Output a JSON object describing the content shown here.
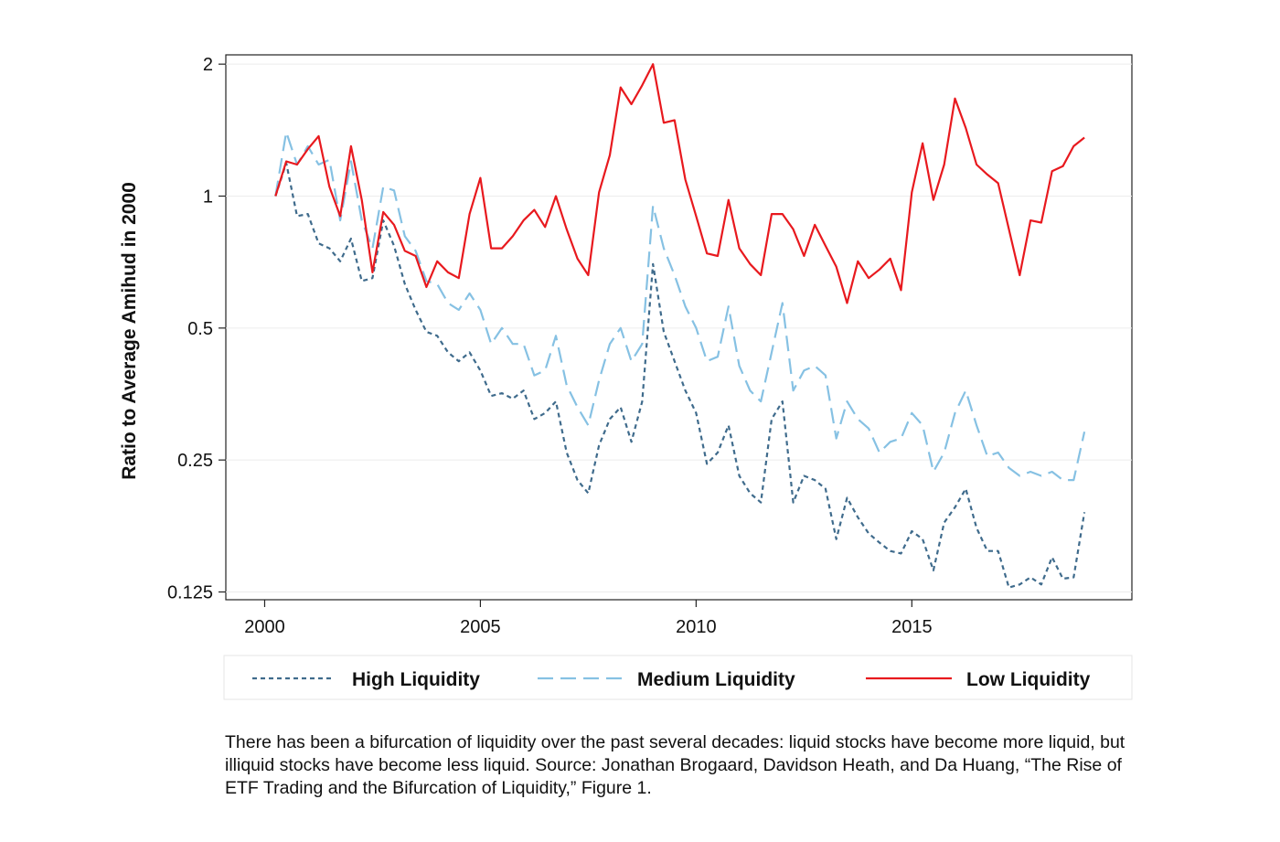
{
  "chart_data": {
    "type": "line",
    "ylabel": "Ratio to Average Amihud in 2000",
    "xlabel": "",
    "y_scale": "log2",
    "ylim": [
      0.12,
      2.1
    ],
    "xlim": [
      1999.1,
      2020.1
    ],
    "y_ticks": [
      2,
      1,
      0.5,
      0.25,
      0.125
    ],
    "y_tick_labels": [
      "2",
      "1",
      "0.5",
      "0.25",
      "0.125"
    ],
    "x_ticks": [
      2000,
      2005,
      2010,
      2015
    ],
    "x_tick_labels": [
      "2000",
      "2005",
      "2010",
      "2015"
    ],
    "grid": "horizontal",
    "legend_position": "bottom",
    "x": [
      2000.25,
      2000.5,
      2000.75,
      2001,
      2001.25,
      2001.5,
      2001.75,
      2002,
      2002.25,
      2002.5,
      2002.75,
      2003,
      2003.25,
      2003.5,
      2003.75,
      2004,
      2004.25,
      2004.5,
      2004.75,
      2005,
      2005.25,
      2005.5,
      2005.75,
      2006,
      2006.25,
      2006.5,
      2006.75,
      2007,
      2007.25,
      2007.5,
      2007.75,
      2008,
      2008.25,
      2008.5,
      2008.75,
      2009,
      2009.25,
      2009.5,
      2009.75,
      2010,
      2010.25,
      2010.5,
      2010.75,
      2011,
      2011.25,
      2011.5,
      2011.75,
      2012,
      2012.25,
      2012.5,
      2012.75,
      2013,
      2013.25,
      2013.5,
      2013.75,
      2014,
      2014.25,
      2014.5,
      2014.75,
      2015,
      2015.25,
      2015.5,
      2015.75,
      2016,
      2016.25,
      2016.5,
      2016.75,
      2017,
      2017.25,
      2017.5,
      2017.75,
      2018,
      2018.25,
      2018.5,
      2018.75,
      2019
    ],
    "series": [
      {
        "name": "High Liquidity",
        "color": "#3f6b8c",
        "dash": "short",
        "values": [
          1.0,
          1.19,
          0.9,
          0.91,
          0.78,
          0.76,
          0.71,
          0.8,
          0.64,
          0.65,
          0.88,
          0.77,
          0.63,
          0.55,
          0.49,
          0.48,
          0.44,
          0.42,
          0.44,
          0.4,
          0.35,
          0.355,
          0.345,
          0.36,
          0.31,
          0.32,
          0.34,
          0.26,
          0.225,
          0.21,
          0.27,
          0.31,
          0.33,
          0.275,
          0.34,
          0.7,
          0.49,
          0.42,
          0.36,
          0.32,
          0.245,
          0.26,
          0.3,
          0.23,
          0.21,
          0.2,
          0.31,
          0.34,
          0.2,
          0.23,
          0.225,
          0.215,
          0.165,
          0.205,
          0.185,
          0.17,
          0.162,
          0.155,
          0.153,
          0.172,
          0.165,
          0.14,
          0.18,
          0.195,
          0.215,
          0.175,
          0.155,
          0.155,
          0.128,
          0.13,
          0.135,
          0.13,
          0.15,
          0.134,
          0.135,
          0.19
        ]
      },
      {
        "name": "Medium Liquidity",
        "color": "#86c1e3",
        "dash": "long",
        "values": [
          1.0,
          1.4,
          1.18,
          1.3,
          1.18,
          1.21,
          0.88,
          1.2,
          0.88,
          0.76,
          1.05,
          1.03,
          0.81,
          0.75,
          0.64,
          0.63,
          0.57,
          0.55,
          0.6,
          0.55,
          0.46,
          0.5,
          0.46,
          0.46,
          0.39,
          0.4,
          0.48,
          0.37,
          0.33,
          0.3,
          0.38,
          0.46,
          0.5,
          0.42,
          0.46,
          0.95,
          0.76,
          0.66,
          0.56,
          0.5,
          0.42,
          0.43,
          0.56,
          0.41,
          0.36,
          0.34,
          0.44,
          0.57,
          0.36,
          0.4,
          0.41,
          0.39,
          0.28,
          0.34,
          0.31,
          0.295,
          0.26,
          0.275,
          0.28,
          0.32,
          0.3,
          0.235,
          0.26,
          0.32,
          0.36,
          0.3,
          0.255,
          0.26,
          0.24,
          0.23,
          0.235,
          0.23,
          0.235,
          0.225,
          0.225,
          0.29
        ]
      },
      {
        "name": "Low Liquidity",
        "color": "#e8191e",
        "dash": "solid",
        "values": [
          1.0,
          1.2,
          1.18,
          1.28,
          1.37,
          1.05,
          0.9,
          1.3,
          0.98,
          0.67,
          0.92,
          0.86,
          0.75,
          0.73,
          0.62,
          0.71,
          0.67,
          0.65,
          0.91,
          1.1,
          0.76,
          0.76,
          0.81,
          0.88,
          0.93,
          0.85,
          1.0,
          0.84,
          0.72,
          0.66,
          1.02,
          1.24,
          1.77,
          1.62,
          1.79,
          2.0,
          1.47,
          1.49,
          1.09,
          0.9,
          0.74,
          0.73,
          0.98,
          0.76,
          0.7,
          0.66,
          0.91,
          0.91,
          0.84,
          0.73,
          0.86,
          0.77,
          0.69,
          0.57,
          0.71,
          0.65,
          0.68,
          0.72,
          0.61,
          1.02,
          1.32,
          0.98,
          1.18,
          1.67,
          1.43,
          1.18,
          1.12,
          1.07,
          0.84,
          0.66,
          0.88,
          0.87,
          1.14,
          1.17,
          1.3,
          1.36
        ]
      }
    ]
  },
  "caption": "There has been a bifurcation of liquidity over the past several decades: liquid stocks have become more liquid, but illiquid stocks have become less liquid. Source: Jonathan Brogaard, Davidson Heath, and Da Huang, “The Rise of ETF Trading and the Bifurcation of Liquidity,” Figure 1."
}
